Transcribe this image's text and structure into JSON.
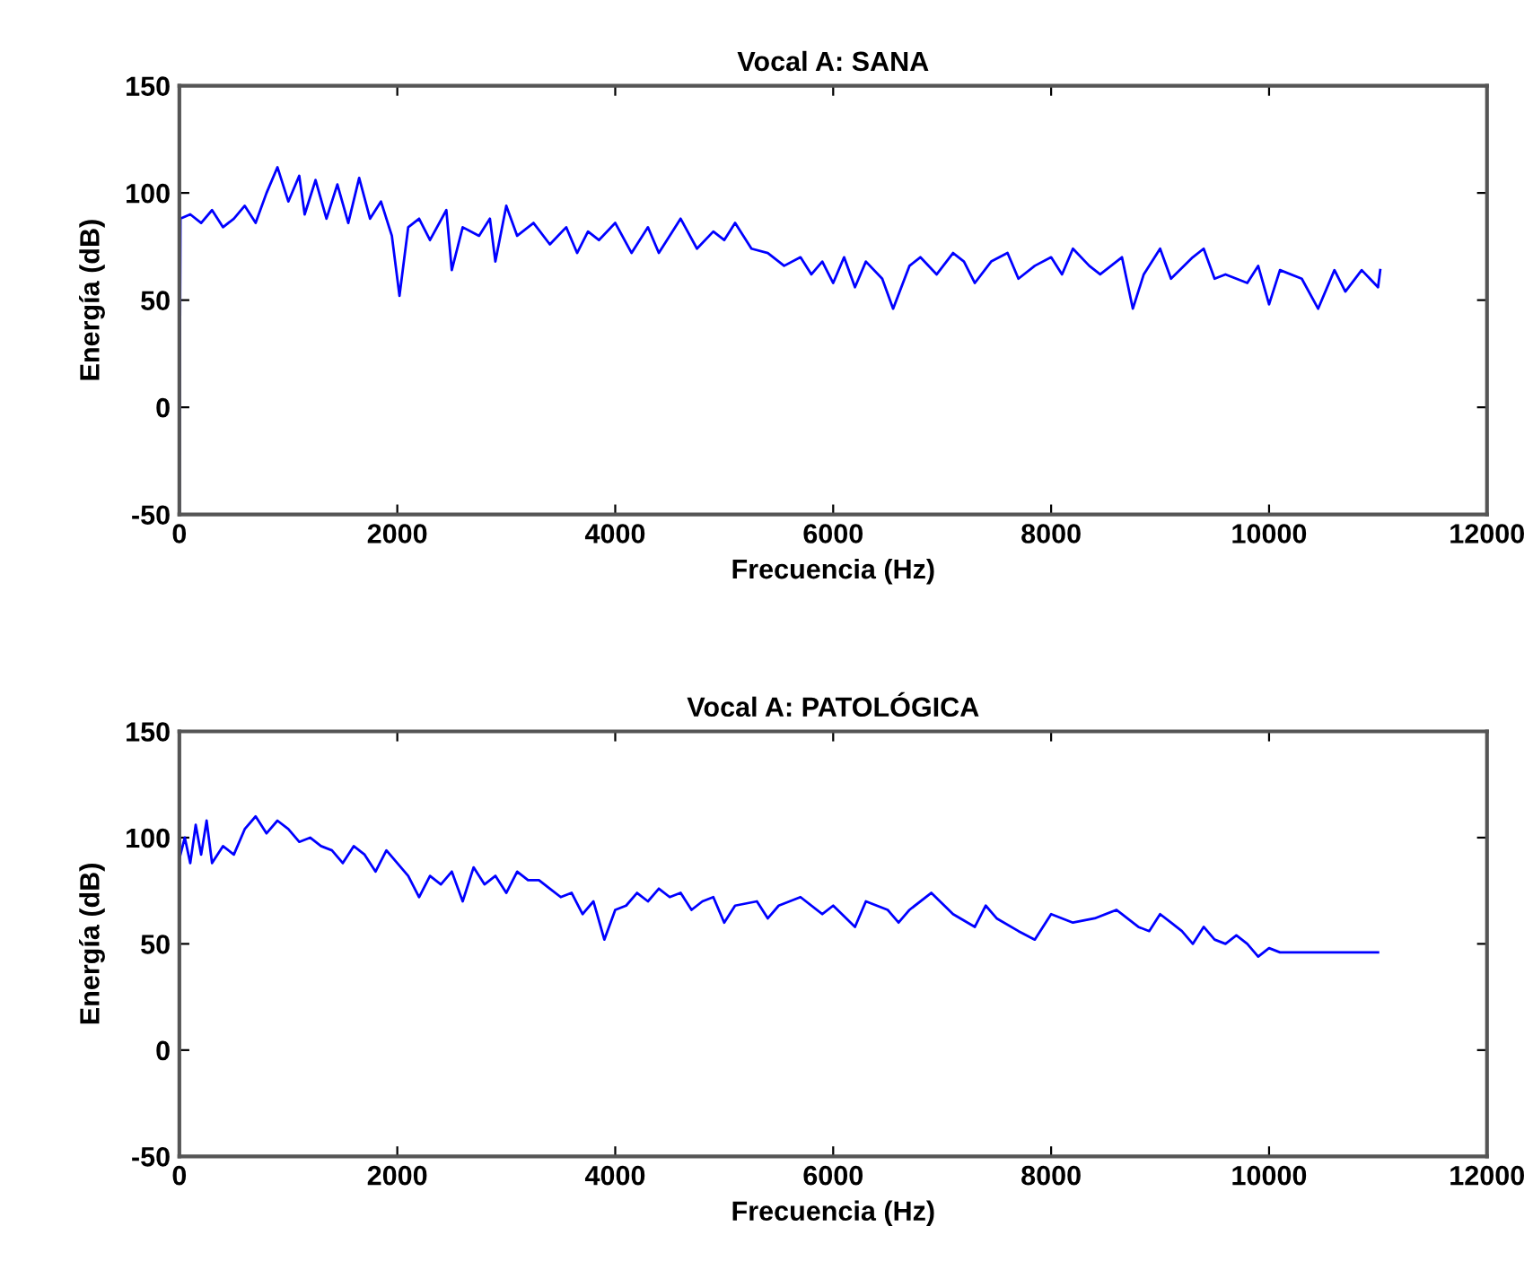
{
  "chart_data": [
    {
      "type": "line",
      "title": "Vocal A: SANA",
      "xlabel": "Frecuencia (Hz)",
      "ylabel": "Energía (dB)",
      "xlim": [
        0,
        12000
      ],
      "ylim": [
        -50,
        150
      ],
      "xticks": [
        0,
        2000,
        4000,
        6000,
        8000,
        10000,
        12000
      ],
      "yticks": [
        -50,
        0,
        50,
        100,
        150
      ],
      "grid": false,
      "legend": false,
      "marker": "none",
      "line_style": "solid",
      "series": [
        {
          "color": "#0000ff",
          "x": [
            0,
            10,
            100,
            200,
            300,
            400,
            500,
            600,
            700,
            800,
            900,
            1000,
            1100,
            1150,
            1250,
            1350,
            1450,
            1550,
            1650,
            1750,
            1850,
            1950,
            2020,
            2100,
            2200,
            2300,
            2450,
            2500,
            2600,
            2750,
            2850,
            2900,
            3000,
            3100,
            3250,
            3400,
            3550,
            3650,
            3750,
            3850,
            4000,
            4150,
            4300,
            4400,
            4600,
            4750,
            4900,
            5000,
            5100,
            5250,
            5400,
            5550,
            5700,
            5800,
            5900,
            6000,
            6100,
            6200,
            6300,
            6450,
            6550,
            6700,
            6800,
            6950,
            7100,
            7200,
            7300,
            7450,
            7600,
            7700,
            7850,
            8000,
            8100,
            8200,
            8350,
            8450,
            8650,
            8750,
            8850,
            9000,
            9100,
            9300,
            9400,
            9500,
            9600,
            9800,
            9900,
            10000,
            10100,
            10300,
            10450,
            10600,
            10700,
            10850,
            11000,
            11020
          ],
          "values": [
            -50,
            88,
            90,
            86,
            92,
            84,
            88,
            94,
            86,
            100,
            112,
            96,
            108,
            90,
            106,
            88,
            104,
            86,
            107,
            88,
            96,
            80,
            52,
            84,
            88,
            78,
            92,
            64,
            84,
            80,
            88,
            68,
            94,
            80,
            86,
            76,
            84,
            72,
            82,
            78,
            86,
            72,
            84,
            72,
            88,
            74,
            82,
            78,
            86,
            74,
            72,
            66,
            70,
            62,
            68,
            58,
            70,
            56,
            68,
            60,
            46,
            66,
            70,
            62,
            72,
            68,
            58,
            68,
            72,
            60,
            66,
            70,
            62,
            74,
            66,
            62,
            70,
            46,
            62,
            74,
            60,
            70,
            74,
            60,
            62,
            58,
            66,
            48,
            64,
            60,
            46,
            64,
            54,
            64,
            56,
            64
          ]
        }
      ]
    },
    {
      "type": "line",
      "title": "Vocal A: PATOLÓGICA",
      "xlabel": "Frecuencia (Hz)",
      "ylabel": "Energía (dB)",
      "xlim": [
        0,
        12000
      ],
      "ylim": [
        -50,
        150
      ],
      "xticks": [
        0,
        2000,
        4000,
        6000,
        8000,
        10000,
        12000
      ],
      "yticks": [
        -50,
        0,
        50,
        100,
        150
      ],
      "grid": false,
      "legend": false,
      "marker": "none",
      "line_style": "solid",
      "series": [
        {
          "color": "#0000ff",
          "x": [
            0,
            50,
            100,
            150,
            200,
            250,
            300,
            400,
            500,
            600,
            700,
            800,
            900,
            1000,
            1100,
            1200,
            1300,
            1400,
            1500,
            1600,
            1700,
            1800,
            1900,
            2000,
            2100,
            2200,
            2300,
            2400,
            2500,
            2600,
            2700,
            2800,
            2900,
            3000,
            3100,
            3200,
            3300,
            3400,
            3500,
            3600,
            3700,
            3800,
            3900,
            4000,
            4100,
            4200,
            4300,
            4400,
            4500,
            4600,
            4700,
            4800,
            4900,
            5000,
            5100,
            5300,
            5400,
            5500,
            5700,
            5900,
            6000,
            6200,
            6300,
            6500,
            6600,
            6700,
            6900,
            7100,
            7300,
            7400,
            7500,
            7700,
            7850,
            8000,
            8200,
            8400,
            8600,
            8800,
            8900,
            9000,
            9100,
            9200,
            9300,
            9400,
            9500,
            9600,
            9700,
            9800,
            9900,
            10000,
            10100,
            11000
          ],
          "values": [
            90,
            100,
            88,
            106,
            92,
            108,
            88,
            96,
            92,
            104,
            110,
            102,
            108,
            104,
            98,
            100,
            96,
            94,
            88,
            96,
            92,
            84,
            94,
            88,
            82,
            72,
            82,
            78,
            84,
            70,
            86,
            78,
            82,
            74,
            84,
            80,
            80,
            76,
            72,
            74,
            64,
            70,
            52,
            66,
            68,
            74,
            70,
            76,
            72,
            74,
            66,
            70,
            72,
            60,
            68,
            70,
            62,
            68,
            72,
            64,
            68,
            58,
            70,
            66,
            60,
            66,
            74,
            64,
            58,
            68,
            62,
            56,
            52,
            64,
            60,
            62,
            66,
            58,
            56,
            64,
            60,
            56,
            50,
            58,
            52,
            50,
            54,
            50,
            44,
            48,
            46,
            46
          ]
        }
      ]
    }
  ]
}
